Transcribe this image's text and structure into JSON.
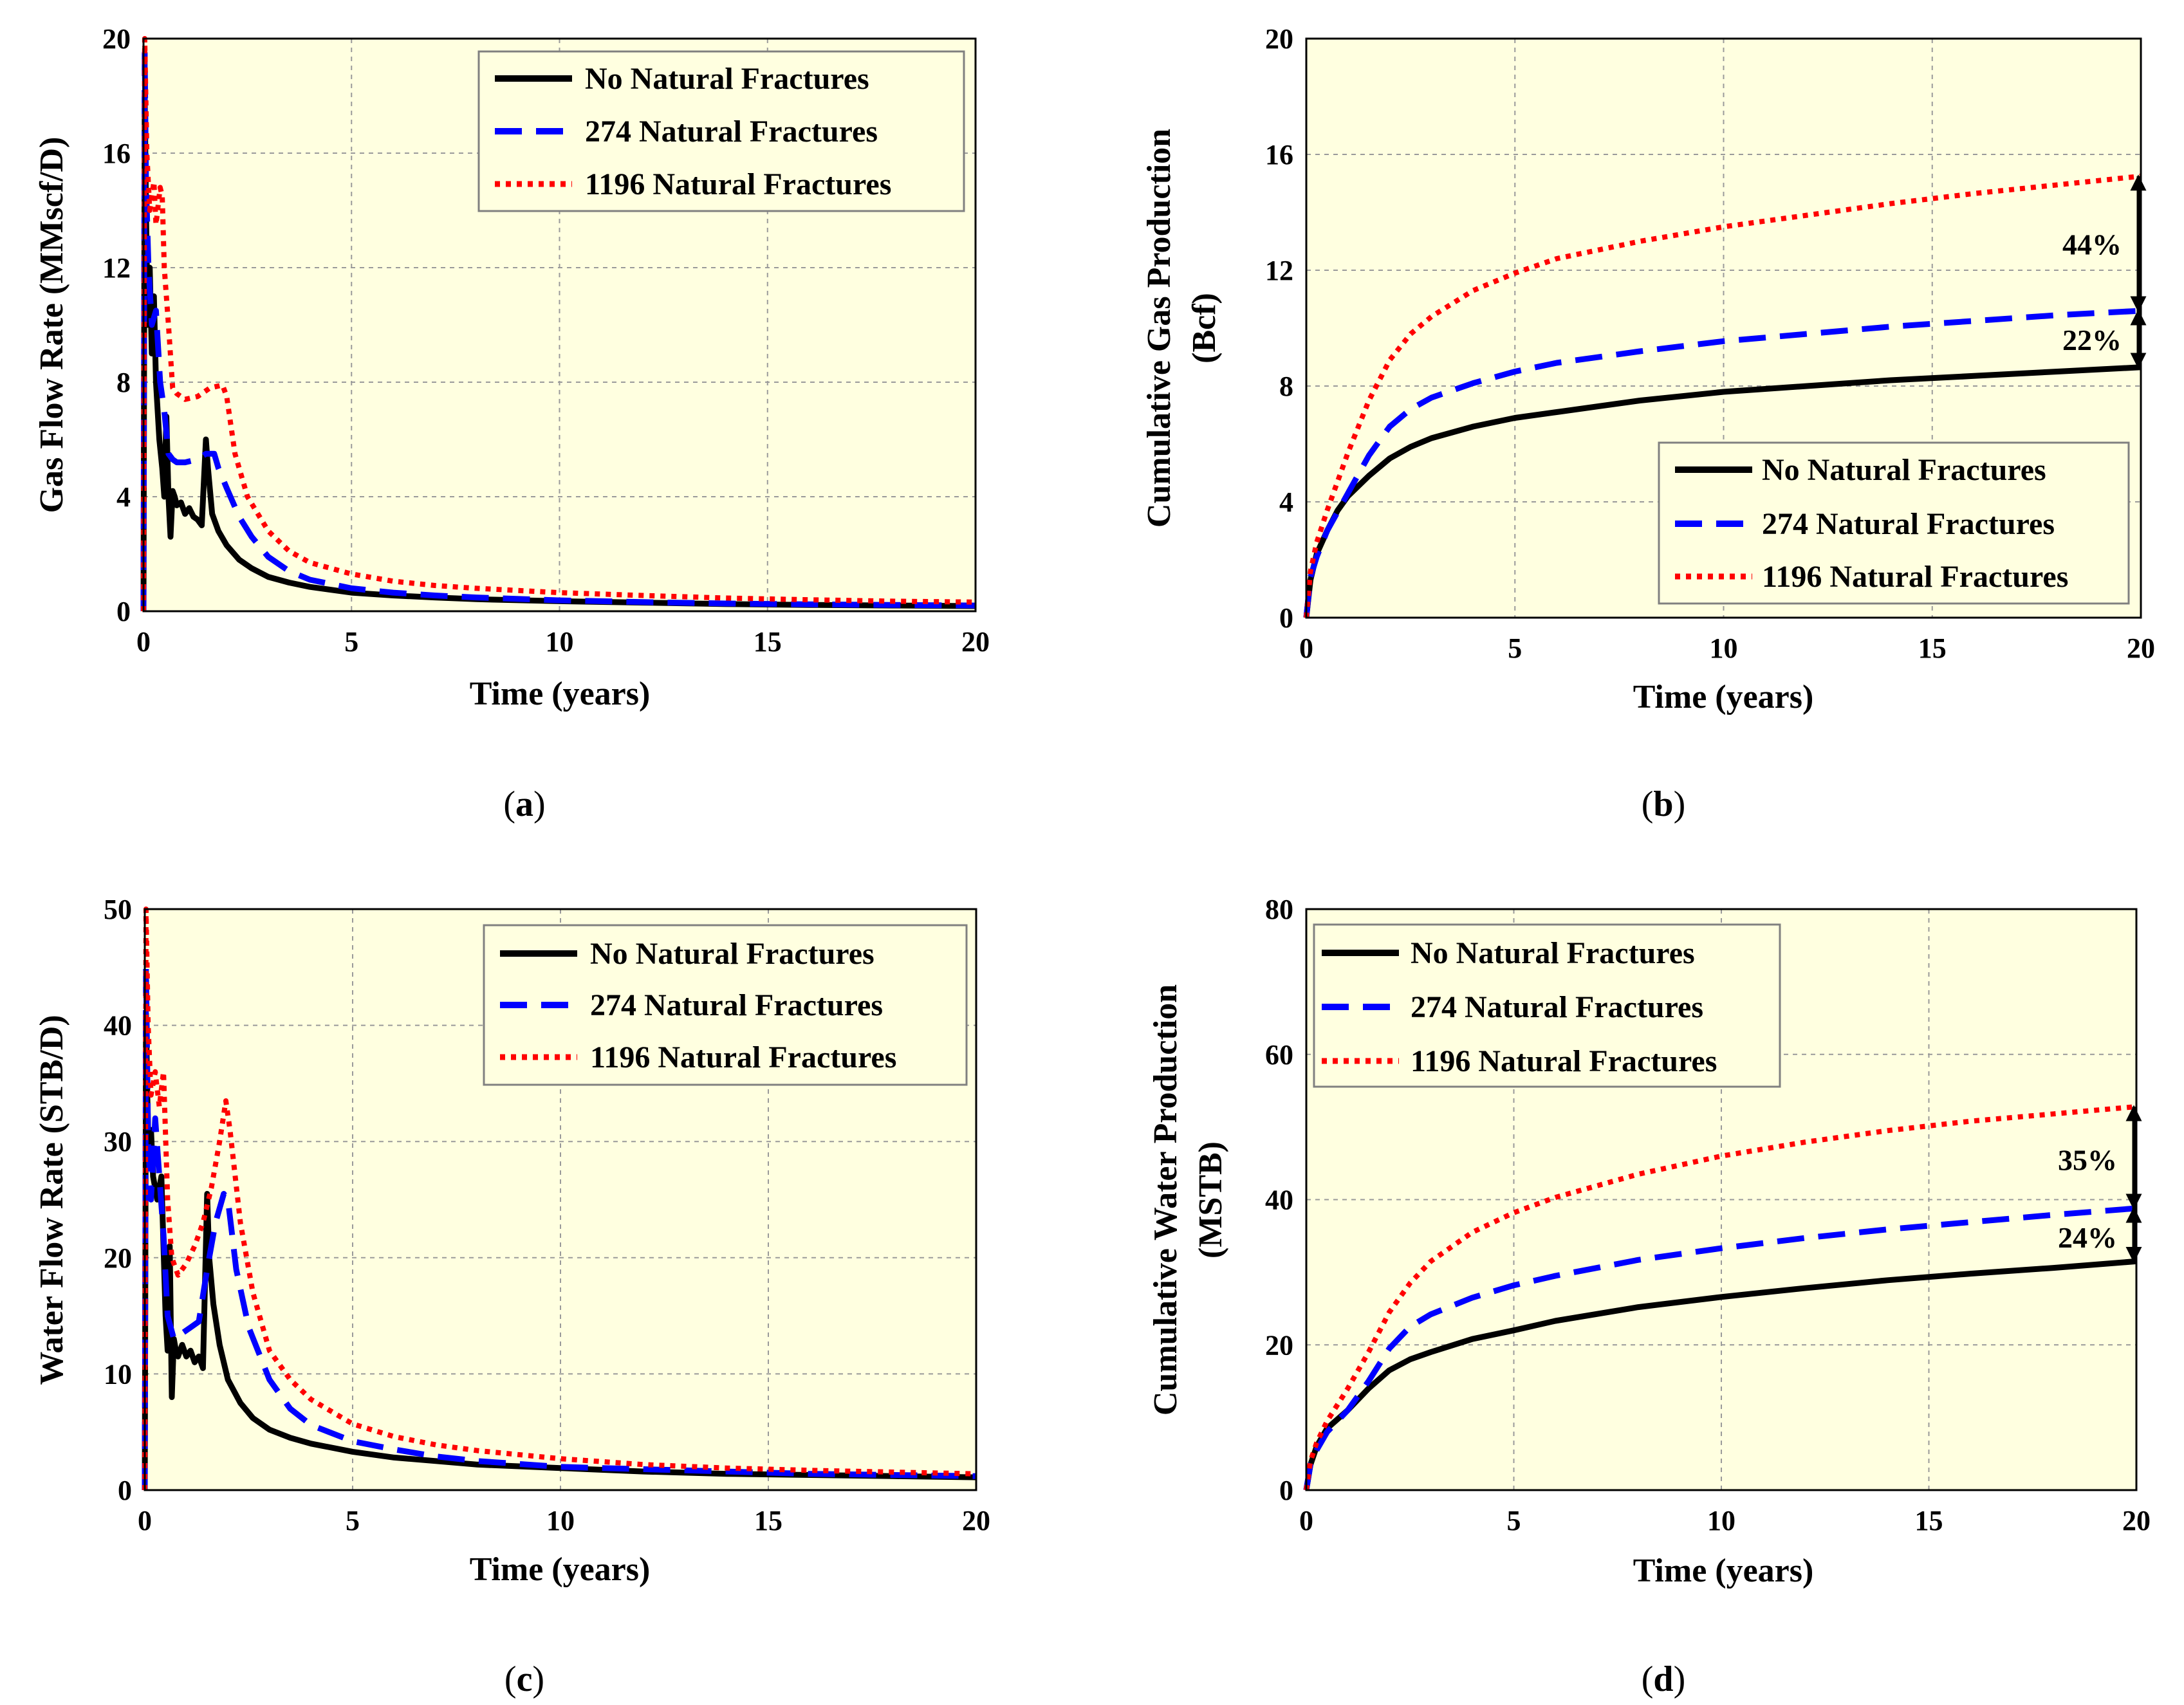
{
  "colors": {
    "plot_bg": "#FFFFE0",
    "grid": "#9A9A9A",
    "no_fractures": "#000000",
    "fractures_274": "#0000FF",
    "fractures_1196": "#FF0000"
  },
  "legend_labels": [
    "No Natural Fractures",
    "274 Natural Fractures",
    "1196 Natural Fractures"
  ],
  "chart_data": [
    {
      "id": "a",
      "type": "line",
      "caption": "a",
      "xlabel": "Time  (years)",
      "ylabel": "Gas  Flow  Rate  (MMscf/D)",
      "xlim": [
        0,
        20
      ],
      "ylim": [
        0,
        20
      ],
      "xticks": [
        "0",
        "5",
        "10",
        "15",
        "20"
      ],
      "yticks": [
        "0",
        "4",
        "8",
        "12",
        "16",
        "20"
      ],
      "legend_position": "top-right",
      "series": [
        {
          "name": "No Natural Fractures",
          "x": [
            0,
            0.03,
            0.06,
            0.1,
            0.15,
            0.2,
            0.25,
            0.3,
            0.38,
            0.45,
            0.5,
            0.55,
            0.6,
            0.65,
            0.7,
            0.75,
            0.8,
            0.9,
            1.0,
            1.1,
            1.2,
            1.3,
            1.4,
            1.5,
            1.55,
            1.65,
            1.8,
            2.0,
            2.3,
            2.6,
            3.0,
            3.5,
            4.0,
            5.0,
            6.0,
            7.0,
            8.0,
            10.0,
            12.0,
            14.0,
            16.0,
            18.0,
            20.0
          ],
          "y": [
            0,
            18,
            14,
            10,
            12,
            9,
            11,
            8,
            6,
            5,
            4,
            6.8,
            4,
            2.6,
            4.2,
            4,
            3.7,
            3.8,
            3.4,
            3.6,
            3.3,
            3.2,
            3.0,
            6.0,
            5.0,
            3.4,
            2.8,
            2.3,
            1.8,
            1.5,
            1.2,
            1.0,
            0.85,
            0.65,
            0.55,
            0.48,
            0.42,
            0.35,
            0.3,
            0.25,
            0.22,
            0.2,
            0.18
          ]
        },
        {
          "name": "274 Natural Fractures",
          "x": [
            0,
            0.03,
            0.06,
            0.12,
            0.2,
            0.3,
            0.4,
            0.5,
            0.6,
            0.7,
            0.8,
            1.0,
            1.3,
            1.5,
            1.7,
            1.8,
            2.0,
            2.3,
            2.6,
            3.0,
            3.5,
            4.0,
            5.0,
            6.0,
            7.0,
            8.0,
            10.0,
            12.0,
            14.0,
            16.0,
            18.0,
            20.0
          ],
          "y": [
            0,
            19.5,
            15,
            12,
            10,
            10.5,
            8,
            7,
            5.5,
            5.3,
            5.2,
            5.2,
            5.3,
            5.5,
            5.5,
            5.0,
            4.3,
            3.3,
            2.6,
            1.9,
            1.4,
            1.1,
            0.8,
            0.65,
            0.55,
            0.48,
            0.38,
            0.32,
            0.27,
            0.24,
            0.22,
            0.2
          ]
        },
        {
          "name": "1196 Natural Fractures",
          "x": [
            0,
            0.03,
            0.08,
            0.15,
            0.25,
            0.3,
            0.4,
            0.45,
            0.5,
            0.6,
            0.7,
            0.8,
            1.0,
            1.3,
            1.6,
            1.9,
            2.0,
            2.2,
            2.5,
            3.0,
            3.5,
            4.0,
            5.0,
            6.0,
            7.0,
            8.0,
            10.0,
            12.0,
            14.0,
            16.0,
            18.0,
            20.0
          ],
          "y": [
            0,
            20,
            16,
            14,
            15,
            13.5,
            14.8,
            14.5,
            12,
            10,
            7.8,
            7.6,
            7.4,
            7.5,
            7.8,
            7.9,
            7.5,
            5.5,
            4.0,
            2.8,
            2.1,
            1.7,
            1.3,
            1.05,
            0.9,
            0.8,
            0.65,
            0.55,
            0.46,
            0.4,
            0.35,
            0.32
          ]
        }
      ],
      "annotations": []
    },
    {
      "id": "b",
      "type": "line",
      "caption": "b",
      "xlabel": "Time  (years)",
      "ylabel_lines": [
        "Cumulative  Gas  Production",
        "(Bcf)"
      ],
      "xlim": [
        0,
        20
      ],
      "ylim": [
        0,
        20
      ],
      "xticks": [
        "0",
        "5",
        "10",
        "15",
        "20"
      ],
      "yticks": [
        "0",
        "4",
        "8",
        "12",
        "16",
        "20"
      ],
      "legend_position": "bottom-right",
      "series": [
        {
          "name": "No Natural Fractures",
          "x": [
            0,
            0.1,
            0.25,
            0.5,
            0.75,
            1.0,
            1.5,
            2.0,
            2.5,
            3.0,
            4.0,
            5.0,
            6.0,
            8.0,
            10.0,
            12.0,
            14.0,
            16.0,
            18.0,
            20.0
          ],
          "y": [
            0,
            1.3,
            2.2,
            3.0,
            3.7,
            4.2,
            4.9,
            5.5,
            5.9,
            6.2,
            6.6,
            6.9,
            7.1,
            7.5,
            7.8,
            8.0,
            8.2,
            8.35,
            8.5,
            8.65
          ]
        },
        {
          "name": "274 Natural Fractures",
          "x": [
            0,
            0.1,
            0.25,
            0.5,
            1.0,
            1.5,
            2.0,
            2.5,
            3.0,
            4.0,
            5.0,
            6.0,
            8.0,
            10.0,
            12.0,
            14.0,
            16.0,
            18.0,
            20.0
          ],
          "y": [
            0,
            1.4,
            2.1,
            3.0,
            4.3,
            5.6,
            6.6,
            7.2,
            7.6,
            8.1,
            8.5,
            8.8,
            9.2,
            9.55,
            9.8,
            10.05,
            10.25,
            10.45,
            10.6
          ]
        },
        {
          "name": "1196 Natural Fractures",
          "x": [
            0,
            0.1,
            0.25,
            0.5,
            1.0,
            1.5,
            2.0,
            2.5,
            3.0,
            4.0,
            5.0,
            6.0,
            8.0,
            10.0,
            12.0,
            14.0,
            16.0,
            18.0,
            20.0
          ],
          "y": [
            0,
            1.6,
            2.6,
            3.7,
            5.7,
            7.5,
            8.9,
            9.8,
            10.4,
            11.3,
            11.9,
            12.4,
            13.0,
            13.5,
            13.9,
            14.3,
            14.65,
            14.95,
            15.25
          ]
        }
      ],
      "annotations": [
        {
          "text": "44%",
          "x": 20,
          "y_from": 15.25,
          "y_to": 10.6,
          "label_y": 12.9
        },
        {
          "text": "22%",
          "x": 20,
          "y_from": 10.6,
          "y_to": 8.65,
          "label_y": 9.6
        }
      ]
    },
    {
      "id": "c",
      "type": "line",
      "caption": "c",
      "xlabel": "Time  (years)",
      "ylabel": "Water  Flow  Rate  (STB/D)",
      "xlim": [
        0,
        20
      ],
      "ylim": [
        0,
        50
      ],
      "xticks": [
        "0",
        "5",
        "10",
        "15",
        "20"
      ],
      "yticks": [
        "0",
        "10",
        "20",
        "30",
        "40",
        "50"
      ],
      "legend_position": "top-right",
      "series": [
        {
          "name": "No Natural Fractures",
          "x": [
            0,
            0.03,
            0.06,
            0.1,
            0.15,
            0.2,
            0.3,
            0.4,
            0.5,
            0.55,
            0.6,
            0.65,
            0.7,
            0.75,
            0.8,
            0.9,
            1.0,
            1.1,
            1.2,
            1.3,
            1.4,
            1.5,
            1.55,
            1.65,
            1.8,
            2.0,
            2.3,
            2.6,
            3.0,
            3.5,
            4.0,
            5.0,
            6.0,
            7.0,
            8.0,
            10.0,
            12.0,
            14.0,
            16.0,
            18.0,
            20.0
          ],
          "y": [
            0,
            41,
            34,
            28,
            31,
            27,
            25,
            27,
            15,
            12,
            21,
            8,
            13,
            12,
            11.5,
            12.5,
            11.5,
            12,
            11,
            11.5,
            10.5,
            25.5,
            20,
            16,
            12.5,
            9.5,
            7.5,
            6.2,
            5.2,
            4.5,
            4.0,
            3.3,
            2.8,
            2.5,
            2.2,
            1.9,
            1.6,
            1.4,
            1.3,
            1.2,
            1.1
          ]
        },
        {
          "name": "274 Natural Fractures",
          "x": [
            0,
            0.03,
            0.08,
            0.15,
            0.25,
            0.35,
            0.45,
            0.55,
            0.7,
            0.9,
            1.1,
            1.3,
            1.5,
            1.7,
            1.9,
            2.0,
            2.2,
            2.5,
            3.0,
            3.5,
            4.0,
            5.0,
            6.0,
            7.0,
            8.0,
            10.0,
            12.0,
            14.0,
            16.0,
            18.0,
            20.0
          ],
          "y": [
            0,
            45,
            30,
            25,
            32,
            27,
            22,
            15,
            13,
            13.5,
            14,
            14.5,
            19,
            23,
            25.5,
            25,
            19,
            14,
            9.5,
            7.0,
            5.6,
            4.2,
            3.5,
            2.9,
            2.5,
            2.0,
            1.8,
            1.6,
            1.4,
            1.3,
            1.2
          ]
        },
        {
          "name": "1196 Natural Fractures",
          "x": [
            0,
            0.03,
            0.08,
            0.15,
            0.25,
            0.35,
            0.45,
            0.55,
            0.65,
            0.8,
            1.0,
            1.2,
            1.4,
            1.6,
            1.8,
            1.95,
            2.05,
            2.3,
            2.6,
            3.0,
            3.5,
            4.0,
            5.0,
            6.0,
            7.0,
            8.0,
            10.0,
            12.0,
            14.0,
            16.0,
            18.0,
            20.0
          ],
          "y": [
            0,
            50,
            40,
            34,
            36,
            33,
            36,
            25,
            20,
            18.5,
            19.5,
            21,
            23,
            26,
            30,
            33.5,
            31,
            23,
            17,
            12,
            9.5,
            7.8,
            5.7,
            4.6,
            3.9,
            3.4,
            2.7,
            2.2,
            1.9,
            1.7,
            1.55,
            1.4
          ]
        }
      ],
      "annotations": []
    },
    {
      "id": "d",
      "type": "line",
      "caption": "d",
      "xlabel": "Time  (years)",
      "ylabel_lines": [
        "Cumulative  Water  Production",
        "(MSTB)"
      ],
      "xlim": [
        0,
        20
      ],
      "ylim": [
        0,
        80
      ],
      "xticks": [
        "0",
        "5",
        "10",
        "15",
        "20"
      ],
      "yticks": [
        "0",
        "20",
        "40",
        "60",
        "80"
      ],
      "legend_position": "top-left",
      "series": [
        {
          "name": "No Natural Fractures",
          "x": [
            0,
            0.1,
            0.25,
            0.5,
            1.0,
            1.5,
            2.0,
            2.5,
            3.0,
            4.0,
            5.0,
            6.0,
            8.0,
            10.0,
            12.0,
            14.0,
            16.0,
            18.0,
            20.0
          ],
          "y": [
            0,
            3.5,
            6,
            8.5,
            11,
            14,
            16.5,
            18,
            19,
            20.8,
            22,
            23.3,
            25.2,
            26.6,
            27.8,
            28.9,
            29.8,
            30.6,
            31.5
          ]
        },
        {
          "name": "274 Natural Fractures",
          "x": [
            0,
            0.1,
            0.25,
            0.5,
            1.0,
            1.5,
            2.0,
            2.5,
            3.0,
            4.0,
            5.0,
            6.0,
            8.0,
            10.0,
            12.0,
            14.0,
            16.0,
            18.0,
            20.0
          ],
          "y": [
            0,
            3.5,
            5.5,
            8,
            11,
            15,
            19.5,
            22.5,
            24.2,
            26.5,
            28.2,
            29.5,
            31.7,
            33.3,
            34.7,
            35.9,
            36.9,
            37.9,
            38.8
          ]
        },
        {
          "name": "1196 Natural Fractures",
          "x": [
            0,
            0.1,
            0.25,
            0.5,
            1.0,
            1.5,
            2.0,
            2.5,
            3.0,
            4.0,
            5.0,
            6.0,
            8.0,
            10.0,
            12.0,
            14.0,
            16.0,
            18.0,
            20.0
          ],
          "y": [
            0,
            4,
            6.5,
            9.5,
            14,
            19,
            24.5,
            28.5,
            31.5,
            35.5,
            38.2,
            40.3,
            43.5,
            46,
            47.9,
            49.5,
            50.8,
            51.8,
            52.8
          ]
        }
      ],
      "annotations": [
        {
          "text": "35%",
          "x": 20,
          "y_from": 52.8,
          "y_to": 38.8,
          "label_y": 45.5
        },
        {
          "text": "24%",
          "x": 20,
          "y_from": 38.8,
          "y_to": 31.5,
          "label_y": 34.8
        }
      ]
    }
  ]
}
